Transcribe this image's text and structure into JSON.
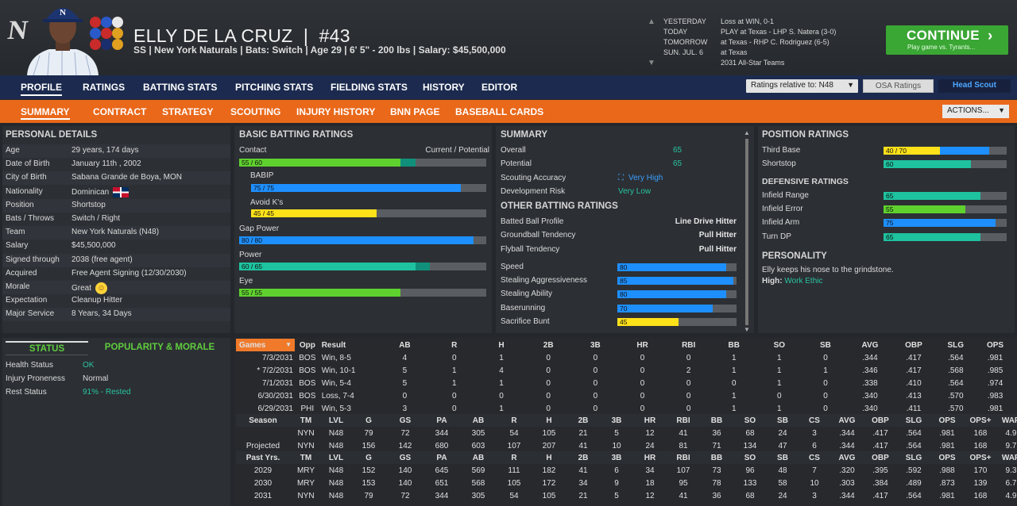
{
  "colors": {
    "accent_orange": "#e9681a",
    "nav_blue": "#1b2a4e",
    "continue_green": "#3aa634",
    "bar_green": "#5fd12e",
    "bar_blue": "#1e8fff",
    "bar_teal": "#1ec29f",
    "bar_yellow": "#ffe11a"
  },
  "header": {
    "logo": "N",
    "name": "ELLY DE LA CRUZ",
    "number_sep": "|",
    "number": "#43",
    "subtitle": "SS | New York Naturals  |  Bats: Switch  |  Age 29  |  6' 5\" - 200 lbs  |  Salary: $45,500,000"
  },
  "schedule": [
    {
      "label": "YESTERDAY",
      "value": "Loss at WIN, 0-1"
    },
    {
      "label": "TODAY",
      "value": "PLAY at Texas - LHP S. Natera (3-0)"
    },
    {
      "label": "TOMORROW",
      "value": "at Texas - RHP C. Rodriguez (6-5)"
    },
    {
      "label": "SUN. JUL. 6",
      "value": "at Texas"
    },
    {
      "label": "",
      "value": "2031 All-Star Teams"
    }
  ],
  "continue": {
    "label": "CONTINUE",
    "sub": "Play game vs. Tyrants...",
    "icon": "chevron-right-icon"
  },
  "nav_main": [
    "PROFILE",
    "RATINGS",
    "BATTING STATS",
    "PITCHING STATS",
    "FIELDING STATS",
    "HISTORY",
    "EDITOR"
  ],
  "ratings_select": "Ratings relative to: N48",
  "osa_button": "OSA Ratings",
  "head_scout_button": "Head Scout",
  "nav_sub": [
    "SUMMARY",
    "CONTRACT",
    "STRATEGY",
    "SCOUTING",
    "INJURY HISTORY",
    "BNN PAGE",
    "BASEBALL CARDS"
  ],
  "actions_select": "ACTIONS...",
  "personal": {
    "title": "PERSONAL DETAILS",
    "rows": [
      {
        "k": "Age",
        "v": "29 years, 174 days"
      },
      {
        "k": "Date of Birth",
        "v": "January 11th , 2002"
      },
      {
        "k": "City of Birth",
        "v": "Sabana Grande de Boya, MON"
      },
      {
        "k": "Nationality",
        "v": "Dominican"
      },
      {
        "k": "Position",
        "v": "Shortstop"
      },
      {
        "k": "Bats / Throws",
        "v": "Switch / Right"
      },
      {
        "k": "Team",
        "v": "New York Naturals (N48)"
      },
      {
        "k": "Salary",
        "v": "$45,500,000"
      },
      {
        "k": "Signed through",
        "v": "2038 (free agent)"
      },
      {
        "k": "Acquired",
        "v": "Free Agent Signing (12/30/2030)"
      },
      {
        "k": "Morale",
        "v": "Great"
      },
      {
        "k": "Expectation",
        "v": "Cleanup Hitter"
      },
      {
        "k": "Major Service",
        "v": "8 Years, 34 Days"
      }
    ]
  },
  "status_tabs": {
    "status": "STATUS",
    "popularity": "POPULARITY & MORALE"
  },
  "status_rows": [
    {
      "k": "Health Status",
      "v": "OK"
    },
    {
      "k": "Injury Proneness",
      "v": "Normal"
    },
    {
      "k": "Rest Status",
      "v": "91% - Rested"
    }
  ],
  "batting": {
    "title": "BASIC BATTING RATINGS",
    "col_label": "Contact",
    "col_right": "Current / Potential",
    "ratings": [
      {
        "name": "",
        "text": "55 / 60",
        "cur": 55,
        "pot": 60,
        "color": "#5fd12e",
        "indent": false
      },
      {
        "name": "BABIP",
        "text": "75 / 75",
        "cur": 75,
        "pot": 75,
        "color": "#1e8fff",
        "indent": true
      },
      {
        "name": "Avoid K's",
        "text": "45 / 45",
        "cur": 45,
        "pot": 45,
        "color": "#ffe11a",
        "indent": true
      },
      {
        "name": "Gap Power",
        "text": "80 / 80",
        "cur": 80,
        "pot": 80,
        "color": "#1e8fff",
        "indent": false
      },
      {
        "name": "Power",
        "text": "60 / 65",
        "cur": 60,
        "pot": 65,
        "color": "#1ec29f",
        "indent": false
      },
      {
        "name": "Eye",
        "text": "55 / 55",
        "cur": 55,
        "pot": 55,
        "color": "#5fd12e",
        "indent": false
      }
    ]
  },
  "summary": {
    "title": "SUMMARY",
    "rows": [
      {
        "k": "Overall",
        "v": "65"
      },
      {
        "k": "Potential",
        "v": "65"
      },
      {
        "k": "Scouting Accuracy",
        "v": "Very High"
      },
      {
        "k": "Development Risk",
        "v": "Very Low"
      }
    ],
    "other_title": "OTHER BATTING RATINGS",
    "other_rows": [
      {
        "k": "Batted Ball Profile",
        "v": "Line Drive Hitter"
      },
      {
        "k": "Groundball Tendency",
        "v": "Pull Hitter"
      },
      {
        "k": "Flyball Tendency",
        "v": "Pull Hitter"
      }
    ],
    "speed": [
      {
        "k": "Speed",
        "v": 80,
        "color": "#1e8fff"
      },
      {
        "k": "Stealing Aggressiveness",
        "v": 85,
        "color": "#1e8fff"
      },
      {
        "k": "Stealing Ability",
        "v": 80,
        "color": "#1e8fff"
      },
      {
        "k": "Baserunning",
        "v": 70,
        "color": "#1e8fff"
      },
      {
        "k": "Sacrifice Bunt",
        "v": 45,
        "color": "#ffe11a"
      }
    ]
  },
  "position": {
    "title": "POSITION RATINGS",
    "rows": [
      {
        "k": "Third Base",
        "text": "40 / 70",
        "cur": 40,
        "pot": 70
      },
      {
        "k": "Shortstop",
        "text": "60",
        "cur": 60,
        "pot": 60
      }
    ],
    "def_title": "DEFENSIVE RATINGS",
    "def": [
      {
        "k": "Infield Range",
        "v": 65,
        "color": "#1ec29f"
      },
      {
        "k": "Infield Error",
        "v": 55,
        "color": "#5fd12e"
      },
      {
        "k": "Infield Arm",
        "v": 75,
        "color": "#1e8fff"
      },
      {
        "k": "Turn DP",
        "v": 65,
        "color": "#1ec29f"
      }
    ],
    "pers_title": "PERSONALITY",
    "pers_text": "Elly keeps his nose to the grindstone.",
    "pers_high_label": "High:",
    "pers_high_value": "Work Ethic"
  },
  "games": {
    "dropdown": "Games",
    "headers": [
      "Opp",
      "Result",
      "AB",
      "R",
      "H",
      "2B",
      "3B",
      "HR",
      "RBI",
      "BB",
      "SO",
      "SB",
      "AVG",
      "OBP",
      "SLG",
      "OPS"
    ],
    "rows": [
      [
        "7/3/2031",
        "BOS",
        "Win, 8-5",
        "4",
        "0",
        "1",
        "0",
        "0",
        "0",
        "0",
        "1",
        "1",
        "0",
        ".344",
        ".417",
        ".564",
        ".981"
      ],
      [
        "* 7/2/2031",
        "BOS",
        "Win, 10-1",
        "5",
        "1",
        "4",
        "0",
        "0",
        "0",
        "2",
        "1",
        "1",
        "1",
        ".346",
        ".417",
        ".568",
        ".985"
      ],
      [
        "7/1/2031",
        "BOS",
        "Win, 5-4",
        "5",
        "1",
        "1",
        "0",
        "0",
        "0",
        "0",
        "0",
        "1",
        "0",
        ".338",
        ".410",
        ".564",
        ".974"
      ],
      [
        "6/30/2031",
        "BOS",
        "Loss, 7-4",
        "0",
        "0",
        "0",
        "0",
        "0",
        "0",
        "0",
        "1",
        "0",
        "0",
        ".340",
        ".413",
        ".570",
        ".983"
      ],
      [
        "6/29/2031",
        "PHI",
        "Win, 5-3",
        "3",
        "0",
        "1",
        "0",
        "0",
        "0",
        "0",
        "1",
        "1",
        "0",
        ".340",
        ".411",
        ".570",
        ".981"
      ]
    ]
  },
  "season": {
    "headers": [
      "Season",
      "TM",
      "LVL",
      "G",
      "GS",
      "PA",
      "AB",
      "R",
      "H",
      "2B",
      "3B",
      "HR",
      "RBI",
      "BB",
      "SO",
      "SB",
      "CS",
      "AVG",
      "OBP",
      "SLG",
      "OPS",
      "OPS+",
      "WAR"
    ],
    "rows": [
      [
        "",
        "NYN",
        "N48",
        "79",
        "72",
        "344",
        "305",
        "54",
        "105",
        "21",
        "5",
        "12",
        "41",
        "36",
        "68",
        "24",
        "3",
        ".344",
        ".417",
        ".564",
        ".981",
        "168",
        "4.9"
      ],
      [
        "Projected",
        "NYN",
        "N48",
        "156",
        "142",
        "680",
        "603",
        "107",
        "207",
        "41",
        "10",
        "24",
        "81",
        "71",
        "134",
        "47",
        "6",
        ".344",
        ".417",
        ".564",
        ".981",
        "168",
        "9.7"
      ]
    ]
  },
  "past": {
    "headers": [
      "Past Yrs.",
      "TM",
      "LVL",
      "G",
      "GS",
      "PA",
      "AB",
      "R",
      "H",
      "2B",
      "3B",
      "HR",
      "RBI",
      "BB",
      "SO",
      "SB",
      "CS",
      "AVG",
      "OBP",
      "SLG",
      "OPS",
      "OPS+",
      "WAR"
    ],
    "rows": [
      [
        "2029",
        "MRY",
        "N48",
        "152",
        "140",
        "645",
        "569",
        "111",
        "182",
        "41",
        "6",
        "34",
        "107",
        "73",
        "96",
        "48",
        "7",
        ".320",
        ".395",
        ".592",
        ".988",
        "170",
        "9.3"
      ],
      [
        "2030",
        "MRY",
        "N48",
        "153",
        "140",
        "651",
        "568",
        "105",
        "172",
        "34",
        "9",
        "18",
        "95",
        "78",
        "133",
        "58",
        "10",
        ".303",
        ".384",
        ".489",
        ".873",
        "139",
        "6.7"
      ],
      [
        "2031",
        "NYN",
        "N48",
        "79",
        "72",
        "344",
        "305",
        "54",
        "105",
        "21",
        "5",
        "12",
        "41",
        "36",
        "68",
        "24",
        "3",
        ".344",
        ".417",
        ".564",
        ".981",
        "168",
        "4.9"
      ]
    ],
    "highlights": [
      [
        0,
        7
      ],
      [
        0,
        12
      ],
      [
        0,
        22
      ],
      [
        1,
        15
      ]
    ]
  }
}
